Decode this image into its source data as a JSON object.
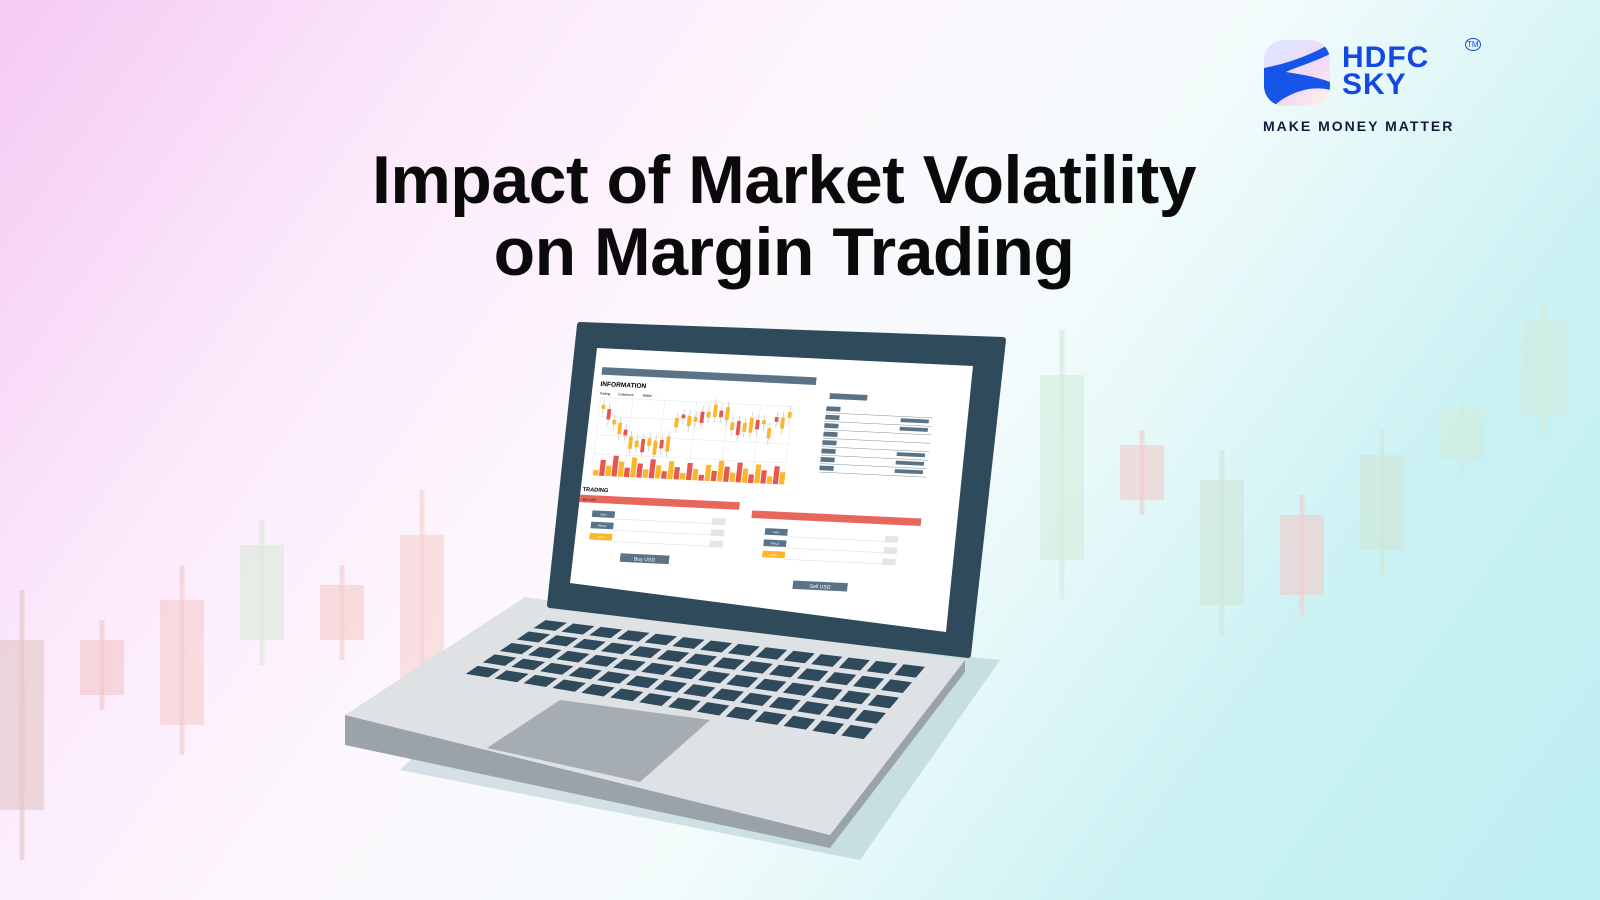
{
  "headline": {
    "line1": "Impact of Market Volatility",
    "line2": "on Margin Trading"
  },
  "brand": {
    "name_line1": "HDFC",
    "name_line2": "SKY",
    "trademark": "TM",
    "tagline": "MAKE MONEY MATTER",
    "color": "#1448e0"
  },
  "screen": {
    "info_heading": "INFORMATION",
    "tabs": [
      "Trading",
      "Orderbook",
      "Wallet"
    ],
    "trading_heading": "TRADING",
    "buy_panel": {
      "header": "Buy USD",
      "fields": [
        "MAX",
        "PRICE",
        "LIMIT"
      ],
      "button": "Buy USD"
    },
    "sell_panel": {
      "fields": [
        "MAX",
        "PRICE",
        "LIMIT"
      ],
      "button": "Sell USD"
    }
  },
  "colors": {
    "up": "#fbb62a",
    "down": "#e8574f",
    "panel": "#5a7387",
    "bezel": "#2f4a5a",
    "accent_red": "#e8675c"
  }
}
